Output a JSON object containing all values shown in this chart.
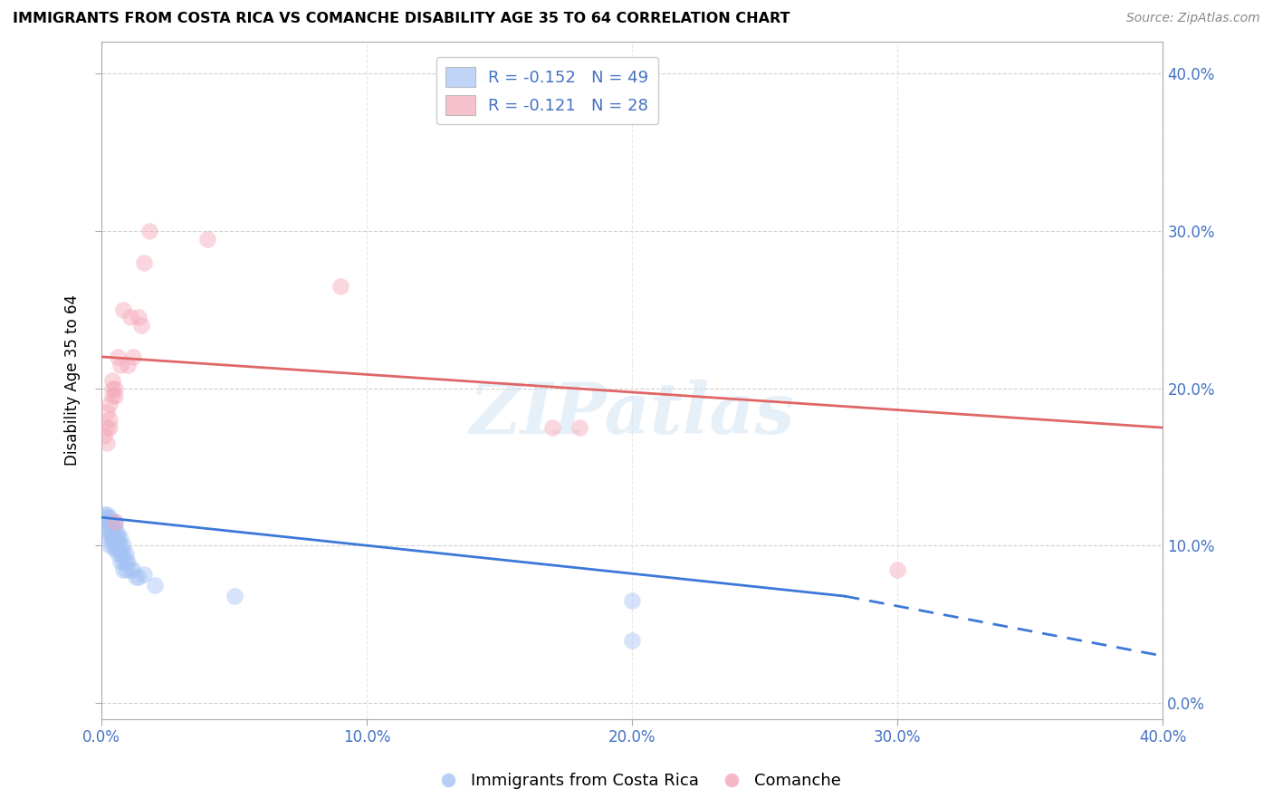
{
  "title": "IMMIGRANTS FROM COSTA RICA VS COMANCHE DISABILITY AGE 35 TO 64 CORRELATION CHART",
  "source": "Source: ZipAtlas.com",
  "ylabel": "Disability Age 35 to 64",
  "xlim": [
    0.0,
    0.4
  ],
  "ylim": [
    -0.01,
    0.42
  ],
  "y_ticks": [
    0.0,
    0.1,
    0.2,
    0.3,
    0.4
  ],
  "x_ticks": [
    0.0,
    0.1,
    0.2,
    0.3,
    0.4
  ],
  "legend_r1": "R = -0.152",
  "legend_n1": "N = 49",
  "legend_r2": "R = -0.121",
  "legend_n2": "N = 28",
  "blue_color": "#a4c2f4",
  "pink_color": "#f4a7b9",
  "line_blue": "#3c78d8",
  "line_pink": "#e06666",
  "watermark": "ZIPatlas",
  "blue_scatter": [
    [
      0.001,
      0.12
    ],
    [
      0.001,
      0.115
    ],
    [
      0.002,
      0.12
    ],
    [
      0.002,
      0.118
    ],
    [
      0.002,
      0.115
    ],
    [
      0.002,
      0.11
    ],
    [
      0.003,
      0.118
    ],
    [
      0.003,
      0.115
    ],
    [
      0.003,
      0.11
    ],
    [
      0.003,
      0.108
    ],
    [
      0.003,
      0.105
    ],
    [
      0.003,
      0.1
    ],
    [
      0.004,
      0.115
    ],
    [
      0.004,
      0.112
    ],
    [
      0.004,
      0.108
    ],
    [
      0.004,
      0.105
    ],
    [
      0.004,
      0.1
    ],
    [
      0.005,
      0.115
    ],
    [
      0.005,
      0.112
    ],
    [
      0.005,
      0.108
    ],
    [
      0.005,
      0.105
    ],
    [
      0.005,
      0.102
    ],
    [
      0.005,
      0.098
    ],
    [
      0.006,
      0.108
    ],
    [
      0.006,
      0.105
    ],
    [
      0.006,
      0.102
    ],
    [
      0.006,
      0.098
    ],
    [
      0.006,
      0.095
    ],
    [
      0.007,
      0.105
    ],
    [
      0.007,
      0.1
    ],
    [
      0.007,
      0.095
    ],
    [
      0.007,
      0.09
    ],
    [
      0.008,
      0.1
    ],
    [
      0.008,
      0.095
    ],
    [
      0.008,
      0.09
    ],
    [
      0.008,
      0.085
    ],
    [
      0.009,
      0.095
    ],
    [
      0.009,
      0.09
    ],
    [
      0.009,
      0.085
    ],
    [
      0.01,
      0.09
    ],
    [
      0.011,
      0.085
    ],
    [
      0.012,
      0.085
    ],
    [
      0.013,
      0.08
    ],
    [
      0.014,
      0.08
    ],
    [
      0.016,
      0.082
    ],
    [
      0.02,
      0.075
    ],
    [
      0.05,
      0.068
    ],
    [
      0.2,
      0.065
    ],
    [
      0.2,
      0.04
    ]
  ],
  "pink_scatter": [
    [
      0.001,
      0.17
    ],
    [
      0.002,
      0.185
    ],
    [
      0.002,
      0.175
    ],
    [
      0.002,
      0.165
    ],
    [
      0.003,
      0.19
    ],
    [
      0.003,
      0.18
    ],
    [
      0.003,
      0.175
    ],
    [
      0.004,
      0.205
    ],
    [
      0.004,
      0.2
    ],
    [
      0.004,
      0.195
    ],
    [
      0.005,
      0.2
    ],
    [
      0.005,
      0.195
    ],
    [
      0.006,
      0.22
    ],
    [
      0.007,
      0.215
    ],
    [
      0.008,
      0.25
    ],
    [
      0.01,
      0.215
    ],
    [
      0.011,
      0.245
    ],
    [
      0.012,
      0.22
    ],
    [
      0.014,
      0.245
    ],
    [
      0.015,
      0.24
    ],
    [
      0.016,
      0.28
    ],
    [
      0.018,
      0.3
    ],
    [
      0.04,
      0.295
    ],
    [
      0.09,
      0.265
    ],
    [
      0.17,
      0.175
    ],
    [
      0.18,
      0.175
    ],
    [
      0.3,
      0.085
    ],
    [
      0.005,
      0.115
    ]
  ],
  "blue_line_solid": [
    [
      0.0,
      0.118
    ],
    [
      0.28,
      0.068
    ]
  ],
  "blue_line_dash": [
    [
      0.28,
      0.068
    ],
    [
      0.4,
      0.03
    ]
  ],
  "pink_line": [
    [
      0.0,
      0.22
    ],
    [
      0.4,
      0.175
    ]
  ]
}
